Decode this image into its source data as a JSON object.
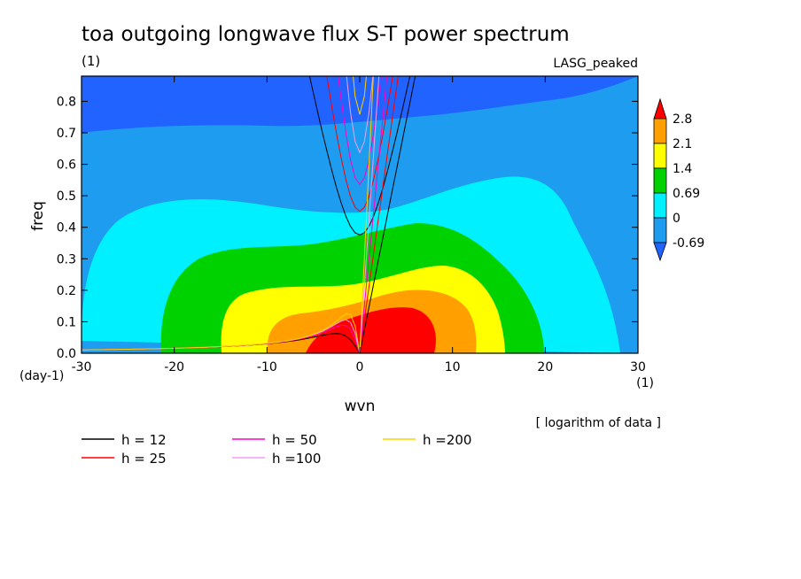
{
  "chart_data": {
    "type": "heatmap",
    "title": "toa outgoing longwave flux S-T power spectrum",
    "title_units": "(1)",
    "experiment": "LASG_peaked",
    "xlabel": "wvn",
    "x_units": "(1)",
    "ylabel": "freq",
    "y_units": "(day-1)",
    "xlim": [
      -30,
      30
    ],
    "ylim": [
      0,
      0.88
    ],
    "x_ticks": [
      -30,
      -20,
      -10,
      0,
      10,
      20,
      30
    ],
    "x_tick_labels": [
      "-30",
      "-20",
      "-10",
      "0",
      "10",
      "20",
      "30"
    ],
    "y_ticks": [
      0,
      0.1,
      0.2,
      0.3,
      0.4,
      0.5,
      0.6,
      0.7,
      0.8
    ],
    "y_tick_labels": [
      "0.0",
      "0.1",
      "0.2",
      "0.3",
      "0.4",
      "0.5",
      "0.6",
      "0.7",
      "0.8"
    ],
    "colorbar": {
      "levels": [
        -0.69,
        0,
        0.69,
        1.4,
        2.1,
        2.8
      ],
      "labels": [
        "-0.69",
        "0",
        "0.69",
        "1.4",
        "2.1",
        "2.8"
      ],
      "colors": [
        "#2063ff",
        "#1e9cf0",
        "#00f0ff",
        "#00d200",
        "#ffff00",
        "#ffa000",
        "#ff0000"
      ],
      "note": "[ logarithm of data ]"
    },
    "dispersion_curves": [
      {
        "label": "h = 12",
        "h": 12,
        "color": "#000000"
      },
      {
        "label": "h = 25",
        "h": 25,
        "color": "#ff0000"
      },
      {
        "label": "h = 50",
        "h": 50,
        "color": "#ff00c8"
      },
      {
        "label": "h =100",
        "h": 100,
        "color": "#f0a0f0"
      },
      {
        "label": "h =200",
        "h": 200,
        "color": "#ffd000"
      }
    ]
  }
}
